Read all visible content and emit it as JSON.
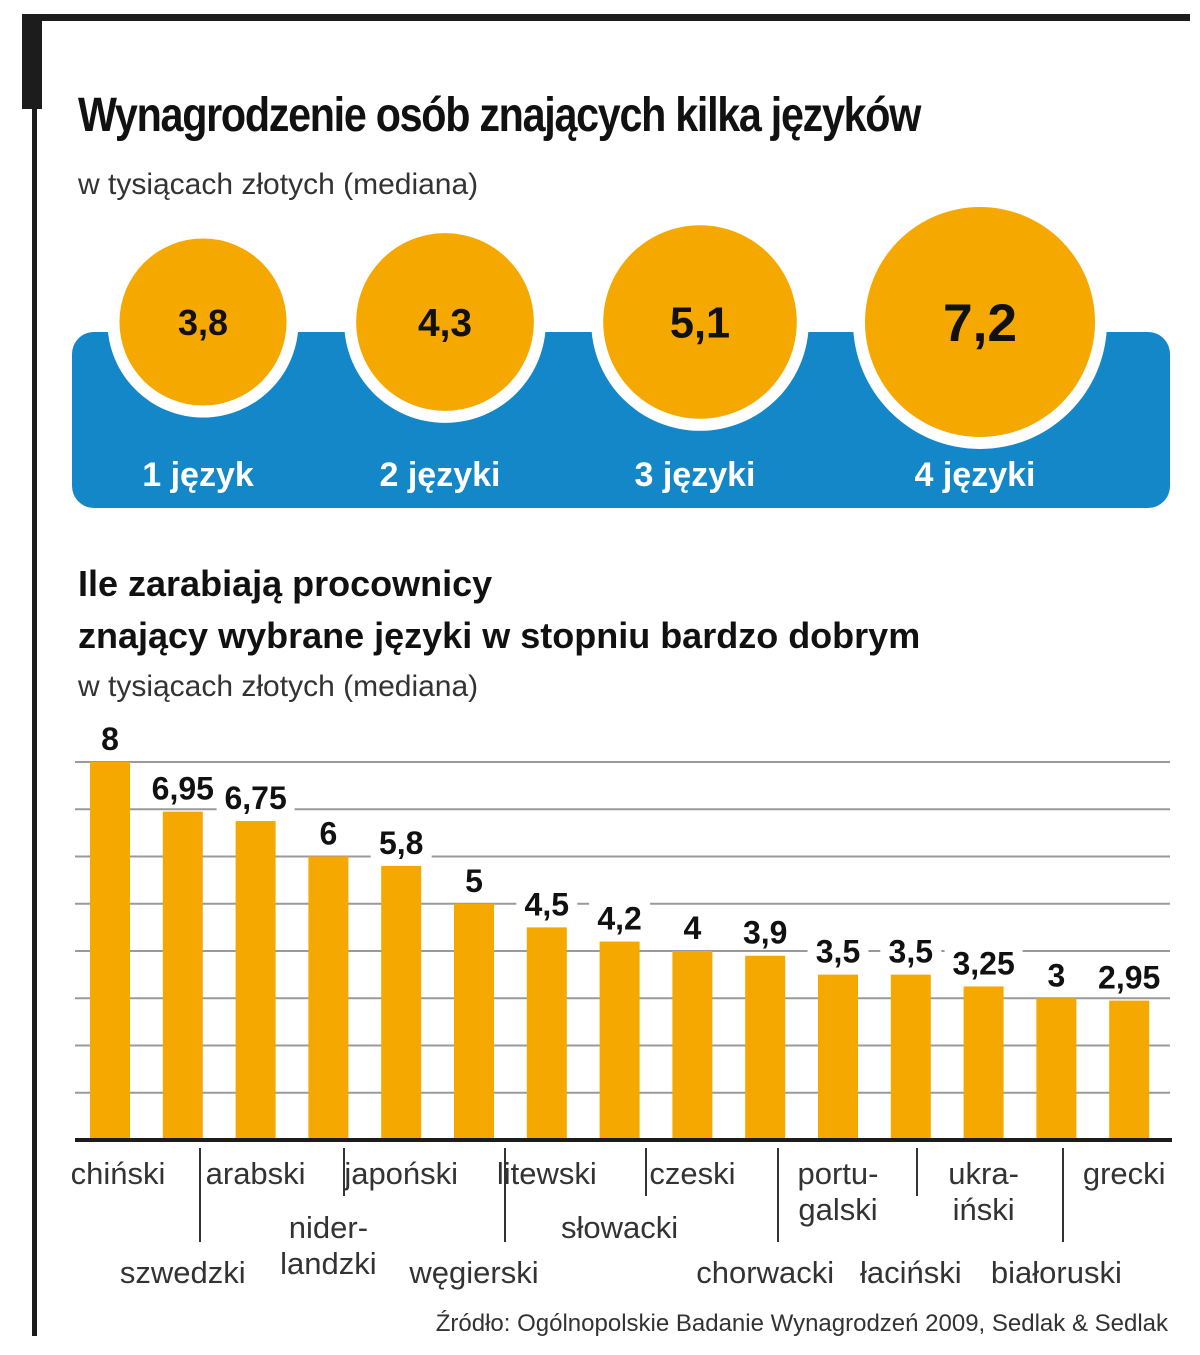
{
  "title": "Wynagrodzenie osób znających kilka języków",
  "subtitle": "w tysiącach złotych (mediana)",
  "colors": {
    "accent": "#F5A800",
    "band": "#1487C9",
    "frame": "#1c1c1c",
    "grid": "#9a9a9a"
  },
  "languages_count": [
    {
      "value": "3,8",
      "label": "1 język"
    },
    {
      "value": "4,3",
      "label": "2 języki"
    },
    {
      "value": "5,1",
      "label": "3 języki"
    },
    {
      "value": "7,2",
      "label": "4 języki"
    }
  ],
  "section2": {
    "title_line1": "Ile zarabiają procownicy",
    "title_line2": "znający wybrane języki w stopniu bardzo dobrym",
    "subtitle": "w tysiącach złotych (mediana)"
  },
  "source": "Źródło: Ogólnopolskie Badanie Wynagrodzeń 2009, Sedlak & Sedlak",
  "chart_data": [
    {
      "type": "bubble",
      "categories": [
        "1 język",
        "2 języki",
        "3 języki",
        "4 języki"
      ],
      "values": [
        3.8,
        4.3,
        5.1,
        7.2
      ],
      "value_labels": [
        "3,8",
        "4,3",
        "5,1",
        "7,2"
      ]
    },
    {
      "type": "bar",
      "categories": [
        [
          "chiński"
        ],
        [
          "szwedzki"
        ],
        [
          "arabski"
        ],
        [
          "nider-",
          "landzki"
        ],
        [
          "japoński"
        ],
        [
          "węgierski"
        ],
        [
          "litewski"
        ],
        [
          "słowacki"
        ],
        [
          "czeski"
        ],
        [
          "chorwacki"
        ],
        [
          "portu-",
          "galski"
        ],
        [
          "łaciński"
        ],
        [
          "ukra-",
          "iński"
        ],
        [
          "białoruski"
        ],
        [
          "grecki"
        ]
      ],
      "values": [
        8,
        6.95,
        6.75,
        6,
        5.8,
        5,
        4.5,
        4.2,
        4,
        3.9,
        3.5,
        3.5,
        3.25,
        3,
        2.95
      ],
      "value_labels": [
        "8",
        "6,95",
        "6,75",
        "6",
        "5,8",
        "5",
        "4,5",
        "4,2",
        "4",
        "3,9",
        "3,5",
        "3,5",
        "3,25",
        "3",
        "2,95"
      ],
      "ylim": [
        0,
        8
      ],
      "grid": true
    }
  ]
}
